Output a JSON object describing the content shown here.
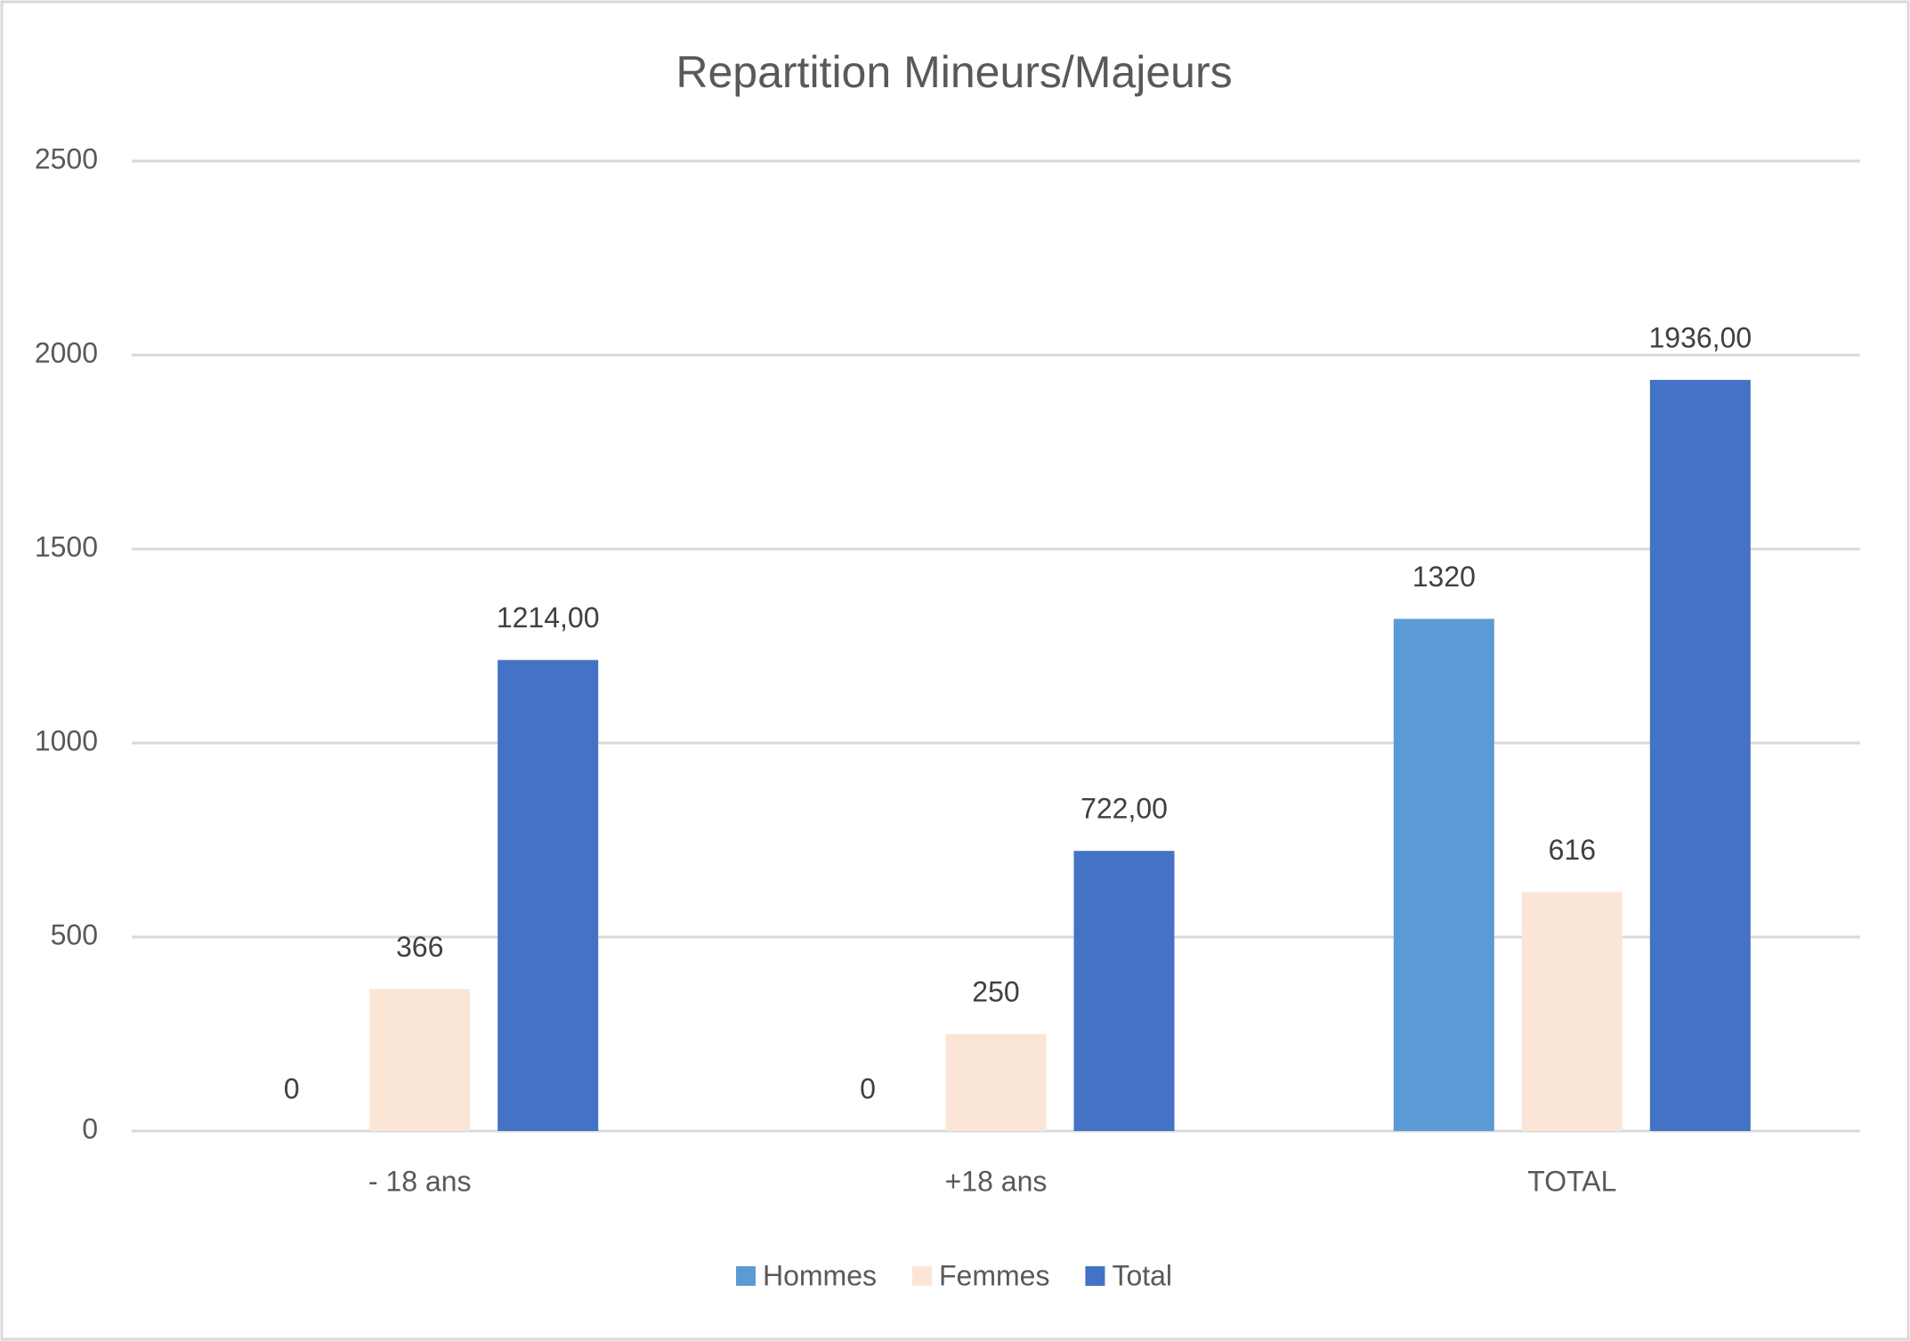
{
  "chart_data": {
    "type": "bar",
    "title": "Repartition Mineurs/Majeurs",
    "categories": [
      "- 18 ans",
      "+18 ans",
      "TOTAL"
    ],
    "series": [
      {
        "name": "Hommes",
        "color": "#5b9bd5",
        "values": [
          0,
          0,
          1320
        ]
      },
      {
        "name": "Femmes",
        "color": "#fbe5d6",
        "values": [
          366,
          250,
          616
        ]
      },
      {
        "name": "Total",
        "color": "#4472c4",
        "values": [
          1214,
          722,
          1936
        ],
        "value_labels": [
          "1214,00",
          "722,00",
          "1936,00"
        ]
      }
    ],
    "ylim": [
      0,
      2500
    ],
    "yticks": [
      0,
      500,
      1000,
      1500,
      2000,
      2500
    ],
    "grid": true,
    "legend": "bottom"
  }
}
